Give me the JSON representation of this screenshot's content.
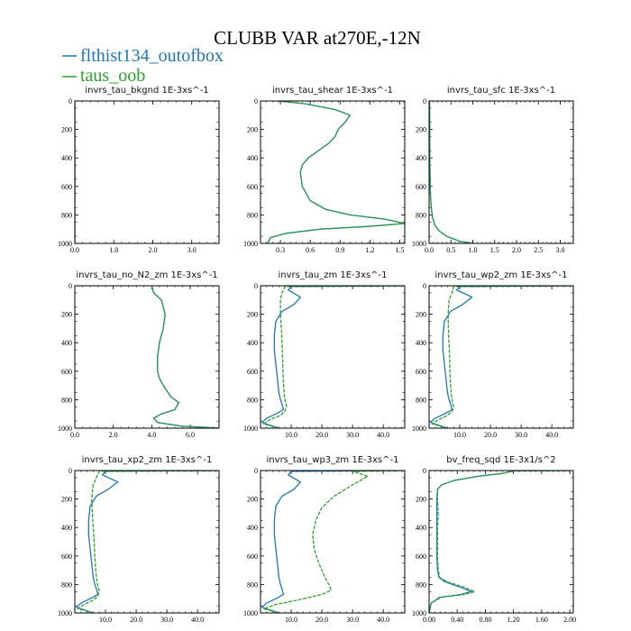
{
  "figure": {
    "title": "CLUBB VAR at270E,-12N",
    "legend": [
      {
        "name": "flthist134_outofbox",
        "color": "#1f77b4"
      },
      {
        "name": "taus_oob",
        "color": "#2ca02c"
      }
    ]
  },
  "chart_data": [
    {
      "type": "line",
      "title": "invrs_tau_bkgnd   1E-3xs^-1",
      "xlim": [
        0,
        3.7
      ],
      "ylim": [
        1000,
        0
      ],
      "xticks": [
        0,
        1,
        2,
        3
      ],
      "xtick_labels": [
        "0.0",
        "1.0",
        "2.0",
        "3.0"
      ],
      "yticks": [
        0,
        200,
        400,
        600,
        800,
        1000
      ],
      "series": [
        {
          "name": "flthist134_outofbox",
          "color": "#1f77b4",
          "x": [
            0,
            0
          ],
          "y": [
            0,
            1000
          ]
        },
        {
          "name": "taus_oob",
          "color": "#2ca02c",
          "x": [
            0,
            0
          ],
          "y": [
            0,
            1000
          ]
        }
      ]
    },
    {
      "type": "line",
      "title": "invrs_tau_shear   1E-3xs^-1",
      "xlim": [
        0.1,
        1.55
      ],
      "ylim": [
        1000,
        0
      ],
      "xticks": [
        0.3,
        0.6,
        0.9,
        1.2,
        1.5
      ],
      "xtick_labels": [
        "0.3",
        "0.6",
        "0.9",
        "1.2",
        "1.5"
      ],
      "yticks": [
        0,
        200,
        400,
        600,
        800,
        1000
      ],
      "series": [
        {
          "name": "flthist134_outofbox",
          "color": "#1f77b4",
          "x": [
            0.28,
            0.55,
            0.85,
            1.0,
            0.95,
            0.88,
            0.85,
            0.78,
            0.68,
            0.58,
            0.52,
            0.5,
            0.52,
            0.6,
            0.75,
            1.0,
            1.35,
            1.55,
            1.2,
            0.7,
            0.35,
            0.2,
            0.17
          ],
          "y": [
            0,
            20,
            60,
            100,
            150,
            200,
            250,
            300,
            350,
            400,
            450,
            500,
            600,
            700,
            760,
            800,
            830,
            860,
            880,
            900,
            930,
            960,
            1000
          ]
        },
        {
          "name": "taus_oob",
          "color": "#2ca02c",
          "x": [
            0.28,
            0.55,
            0.85,
            1.0,
            0.95,
            0.88,
            0.85,
            0.78,
            0.68,
            0.58,
            0.52,
            0.5,
            0.52,
            0.6,
            0.75,
            1.0,
            1.35,
            1.55,
            1.2,
            0.7,
            0.35,
            0.2,
            0.17
          ],
          "y": [
            0,
            20,
            60,
            100,
            150,
            200,
            250,
            300,
            350,
            400,
            450,
            500,
            600,
            700,
            760,
            800,
            830,
            860,
            880,
            900,
            930,
            960,
            1000
          ]
        }
      ]
    },
    {
      "type": "line",
      "title": "invrs_tau_sfc   1E-3xs^-1",
      "xlim": [
        0,
        3.3
      ],
      "ylim": [
        1000,
        0
      ],
      "xticks": [
        0,
        0.5,
        1,
        1.5,
        2,
        2.5,
        3
      ],
      "xtick_labels": [
        "0.0",
        "0.5",
        "1.0",
        "1.5",
        "2.0",
        "2.5",
        "3.0"
      ],
      "yticks": [
        0,
        200,
        400,
        600,
        800,
        1000
      ],
      "series": [
        {
          "name": "flthist134_outofbox",
          "color": "#1f77b4",
          "x": [
            0.01,
            0.015,
            0.02,
            0.03,
            0.05,
            0.08,
            0.13,
            0.22,
            0.4,
            0.7,
            1.0
          ],
          "y": [
            0,
            300,
            500,
            650,
            750,
            820,
            870,
            910,
            950,
            985,
            1000
          ]
        },
        {
          "name": "taus_oob",
          "color": "#2ca02c",
          "x": [
            0.01,
            0.015,
            0.02,
            0.03,
            0.05,
            0.08,
            0.13,
            0.22,
            0.4,
            0.7,
            1.0
          ],
          "y": [
            0,
            300,
            500,
            650,
            750,
            820,
            870,
            910,
            950,
            985,
            1000
          ]
        }
      ]
    },
    {
      "type": "line",
      "title": "invrs_tau_no_N2_zm   1E-3xs^-1",
      "xlim": [
        0,
        7.5
      ],
      "ylim": [
        1000,
        0
      ],
      "xticks": [
        0,
        2,
        4,
        6
      ],
      "xtick_labels": [
        "0.0",
        "2.0",
        "4.0",
        "6.0"
      ],
      "yticks": [
        0,
        200,
        400,
        600,
        800,
        1000
      ],
      "series": [
        {
          "name": "flthist134_outofbox",
          "color": "#1f77b4",
          "x": [
            4.0,
            4.1,
            4.5,
            4.7,
            4.6,
            4.4,
            4.3,
            4.3,
            4.4,
            4.6,
            5.0,
            5.4,
            5.2,
            4.5,
            4.1,
            4.3,
            5.5,
            7.5
          ],
          "y": [
            0,
            50,
            100,
            200,
            300,
            400,
            500,
            600,
            650,
            700,
            780,
            820,
            870,
            900,
            930,
            960,
            985,
            1000
          ]
        },
        {
          "name": "taus_oob",
          "color": "#2ca02c",
          "x": [
            4.0,
            4.1,
            4.5,
            4.7,
            4.6,
            4.4,
            4.3,
            4.3,
            4.4,
            4.6,
            5.0,
            5.4,
            5.2,
            4.5,
            4.1,
            4.3,
            5.5,
            7.5
          ],
          "y": [
            0,
            50,
            100,
            200,
            300,
            400,
            500,
            600,
            650,
            700,
            780,
            820,
            870,
            900,
            930,
            960,
            985,
            1000
          ]
        }
      ]
    },
    {
      "type": "line",
      "title": "invrs_tau_zm   1E-3xs^-1",
      "xlim": [
        0,
        47
      ],
      "ylim": [
        1000,
        0
      ],
      "xticks": [
        10,
        20,
        30,
        40
      ],
      "xtick_labels": [
        "10.0",
        "20.0",
        "30.0",
        "40.0"
      ],
      "yticks": [
        0,
        200,
        400,
        600,
        800,
        1000
      ],
      "series": [
        {
          "name": "flthist134_outofbox",
          "color": "#1f77b4",
          "x": [
            47,
            10,
            9,
            13,
            11,
            7,
            5,
            4.5,
            4.5,
            5,
            5.5,
            6,
            6.5,
            7,
            7.5,
            5,
            2,
            0.5,
            6
          ],
          "y": [
            0,
            5,
            30,
            80,
            130,
            180,
            250,
            350,
            450,
            550,
            650,
            750,
            800,
            830,
            870,
            900,
            930,
            960,
            1000
          ]
        },
        {
          "name": "taus_oob",
          "color": "#2ca02c",
          "x": [
            47,
            8,
            7,
            6.5,
            6.5,
            6.8,
            7,
            7.2,
            7.3,
            7.5,
            7.8,
            8.2,
            8.5,
            8,
            6.5,
            3,
            1,
            6
          ],
          "y": [
            0,
            5,
            50,
            100,
            200,
            300,
            400,
            500,
            600,
            700,
            780,
            820,
            850,
            880,
            910,
            940,
            970,
            1000
          ]
        }
      ]
    },
    {
      "type": "line",
      "title": "invrs_tau_wp2_zm   1E-3xs^-1",
      "xlim": [
        0,
        47
      ],
      "ylim": [
        1000,
        0
      ],
      "xticks": [
        10,
        20,
        30,
        40
      ],
      "xtick_labels": [
        "10.0",
        "20.0",
        "30.0",
        "40.0"
      ],
      "yticks": [
        0,
        200,
        400,
        600,
        800,
        1000
      ],
      "series": [
        {
          "name": "flthist134_outofbox",
          "color": "#1f77b4",
          "x": [
            47,
            10,
            9,
            14,
            11,
            7,
            5,
            4.5,
            4.5,
            5,
            5.5,
            6,
            6.5,
            7,
            7.5,
            5,
            2,
            0.5,
            6
          ],
          "y": [
            0,
            5,
            30,
            80,
            130,
            180,
            250,
            350,
            450,
            550,
            650,
            750,
            800,
            830,
            870,
            900,
            930,
            960,
            1000
          ]
        },
        {
          "name": "taus_oob",
          "color": "#2ca02c",
          "x": [
            47,
            8,
            7.5,
            6.5,
            6.2,
            6.3,
            6.5,
            6.7,
            6.8,
            7,
            7.3,
            7.6,
            8,
            7.5,
            6,
            3,
            1,
            6
          ],
          "y": [
            0,
            5,
            50,
            100,
            200,
            300,
            400,
            500,
            600,
            700,
            780,
            820,
            850,
            880,
            910,
            940,
            970,
            1000
          ]
        }
      ]
    },
    {
      "type": "line",
      "title": "invrs_tau_xp2_zm   1E-3xs^-1",
      "xlim": [
        0,
        47
      ],
      "ylim": [
        1000,
        0
      ],
      "xticks": [
        10,
        20,
        30,
        40
      ],
      "xtick_labels": [
        "10.0",
        "20.0",
        "30.0",
        "40.0"
      ],
      "yticks": [
        0,
        200,
        400,
        600,
        800,
        1000
      ],
      "series": [
        {
          "name": "flthist134_outofbox",
          "color": "#1f77b4",
          "x": [
            47,
            10,
            9,
            14,
            11,
            7,
            5,
            4.5,
            4.5,
            5,
            5.5,
            6,
            6.5,
            7,
            7.5,
            5,
            2,
            0.5,
            6
          ],
          "y": [
            0,
            5,
            30,
            80,
            130,
            180,
            250,
            350,
            450,
            550,
            650,
            750,
            800,
            830,
            870,
            900,
            930,
            960,
            1000
          ]
        },
        {
          "name": "taus_oob",
          "color": "#2ca02c",
          "x": [
            47,
            8,
            7,
            6,
            5.5,
            5.7,
            6,
            6.3,
            6.5,
            6.8,
            7.2,
            7.6,
            8,
            7.5,
            6,
            3,
            1,
            6
          ],
          "y": [
            0,
            5,
            50,
            100,
            200,
            300,
            400,
            500,
            600,
            700,
            780,
            820,
            850,
            880,
            910,
            940,
            970,
            1000
          ]
        }
      ]
    },
    {
      "type": "line",
      "title": "invrs_tau_wp3_zm   1E-3xs^-1",
      "xlim": [
        0,
        47
      ],
      "ylim": [
        1000,
        0
      ],
      "xticks": [
        10,
        20,
        30,
        40
      ],
      "xtick_labels": [
        "10.0",
        "20.0",
        "30.0",
        "40.0"
      ],
      "yticks": [
        0,
        200,
        400,
        600,
        800,
        1000
      ],
      "series": [
        {
          "name": "flthist134_outofbox",
          "color": "#1f77b4",
          "x": [
            47,
            10,
            9,
            13,
            11,
            7,
            5,
            4.5,
            4.5,
            5,
            5.5,
            6,
            6.5,
            7,
            7.5,
            5,
            2,
            0.5,
            6
          ],
          "y": [
            0,
            5,
            30,
            80,
            130,
            180,
            250,
            350,
            450,
            550,
            650,
            750,
            800,
            830,
            870,
            900,
            930,
            960,
            1000
          ]
        },
        {
          "name": "taus_oob",
          "color": "#2ca02c",
          "x": [
            47,
            30,
            35,
            30,
            24,
            20,
            18,
            17,
            17.5,
            19,
            21,
            22.5,
            23,
            20,
            12,
            5,
            1,
            6
          ],
          "y": [
            0,
            5,
            40,
            100,
            180,
            260,
            350,
            450,
            550,
            650,
            750,
            810,
            840,
            870,
            910,
            940,
            970,
            1000
          ]
        }
      ]
    },
    {
      "type": "line",
      "title": "bv_freq_sqd   1E-3x1/s^2",
      "xlim": [
        0,
        2.05
      ],
      "ylim": [
        1000,
        0
      ],
      "xticks": [
        0,
        0.4,
        0.8,
        1.2,
        1.6,
        2.0
      ],
      "xtick_labels": [
        "0.00",
        "0.40",
        "0.80",
        "1.20",
        "1.60",
        "2.00"
      ],
      "yticks": [
        0,
        200,
        400,
        600,
        800,
        1000
      ],
      "series": [
        {
          "name": "flthist134_outofbox",
          "color": "#1f77b4",
          "x": [
            2.0,
            1.2,
            1.05,
            0.7,
            0.35,
            0.18,
            0.12,
            0.11,
            0.11,
            0.11,
            0.11,
            0.11,
            0.12,
            0.14,
            0.22,
            0.45,
            0.6,
            0.45,
            0.15,
            0.03,
            0.0
          ],
          "y": [
            0,
            2,
            20,
            40,
            70,
            100,
            130,
            200,
            300,
            400,
            500,
            600,
            700,
            750,
            780,
            820,
            850,
            870,
            890,
            930,
            1000
          ]
        },
        {
          "name": "taus_oob",
          "color": "#2ca02c",
          "x": [
            2.0,
            1.2,
            1.05,
            0.7,
            0.35,
            0.18,
            0.12,
            0.12,
            0.13,
            0.12,
            0.12,
            0.12,
            0.13,
            0.15,
            0.25,
            0.5,
            0.65,
            0.5,
            0.17,
            0.03,
            0.0
          ],
          "y": [
            0,
            2,
            20,
            40,
            70,
            100,
            130,
            200,
            300,
            400,
            500,
            600,
            700,
            750,
            780,
            820,
            850,
            870,
            890,
            930,
            1000
          ]
        }
      ]
    }
  ]
}
